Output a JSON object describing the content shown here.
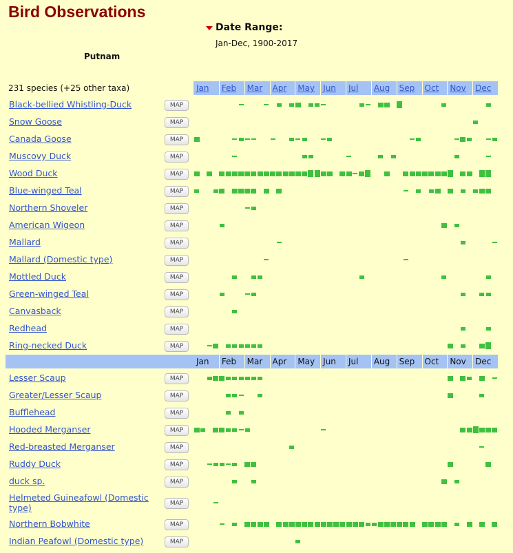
{
  "header": {
    "title": "Bird Observations",
    "date_range_label": "Date Range:",
    "date_range": "Jan-Dec, 1900-2017",
    "location": "Putnam",
    "species_count": "231 species (+25 other taxa)",
    "map_button": "MAP"
  },
  "months": [
    "Jan",
    "Feb",
    "Mar",
    "Apr",
    "May",
    "Jun",
    "Jul",
    "Aug",
    "Sep",
    "Oct",
    "Nov",
    "Dec"
  ],
  "species": [
    {
      "name": "Black-bellied Whistling-Duck",
      "weeks": [
        0,
        0,
        0,
        0,
        0,
        0,
        0,
        1,
        0,
        0,
        0,
        1,
        0,
        2,
        0,
        2,
        3,
        0,
        2,
        2,
        1,
        0,
        0,
        0,
        0,
        0,
        2,
        1,
        0,
        3,
        3,
        0,
        4,
        0,
        0,
        0,
        0,
        0,
        0,
        2,
        0,
        0,
        0,
        0,
        0,
        0,
        2,
        0
      ]
    },
    {
      "name": "Snow Goose",
      "weeks": [
        0,
        0,
        0,
        0,
        0,
        0,
        0,
        0,
        0,
        0,
        0,
        0,
        0,
        0,
        0,
        0,
        0,
        0,
        0,
        0,
        0,
        0,
        0,
        0,
        0,
        0,
        0,
        0,
        0,
        0,
        0,
        0,
        0,
        0,
        0,
        0,
        0,
        0,
        0,
        0,
        0,
        0,
        0,
        0,
        2,
        0,
        0,
        0
      ]
    },
    {
      "name": "Canada Goose",
      "weeks": [
        3,
        0,
        0,
        0,
        0,
        0,
        1,
        2,
        1,
        1,
        0,
        0,
        1,
        0,
        0,
        2,
        1,
        2,
        0,
        0,
        1,
        2,
        0,
        0,
        0,
        0,
        0,
        0,
        0,
        0,
        0,
        0,
        0,
        0,
        1,
        2,
        0,
        0,
        0,
        0,
        0,
        1,
        3,
        2,
        0,
        0,
        1,
        2
      ]
    },
    {
      "name": "Muscovy Duck",
      "weeks": [
        0,
        0,
        0,
        0,
        0,
        0,
        1,
        0,
        0,
        0,
        0,
        0,
        0,
        0,
        0,
        0,
        0,
        2,
        2,
        0,
        0,
        0,
        0,
        0,
        1,
        0,
        0,
        0,
        0,
        2,
        0,
        2,
        0,
        0,
        0,
        0,
        0,
        0,
        0,
        0,
        0,
        2,
        0,
        0,
        0,
        0,
        1,
        0
      ]
    },
    {
      "name": "Wood Duck",
      "weeks": [
        3,
        0,
        3,
        0,
        3,
        3,
        3,
        3,
        3,
        3,
        3,
        3,
        3,
        3,
        3,
        3,
        3,
        3,
        4,
        4,
        3,
        3,
        0,
        3,
        3,
        1,
        3,
        4,
        0,
        0,
        3,
        0,
        0,
        3,
        3,
        3,
        3,
        3,
        3,
        3,
        4,
        0,
        3,
        3,
        0,
        4,
        4,
        0
      ]
    },
    {
      "name": "Blue-winged Teal",
      "weeks": [
        2,
        0,
        0,
        2,
        3,
        0,
        3,
        3,
        3,
        3,
        0,
        3,
        0,
        3,
        0,
        0,
        0,
        0,
        0,
        0,
        0,
        0,
        0,
        0,
        0,
        0,
        0,
        0,
        0,
        0,
        0,
        0,
        0,
        1,
        0,
        2,
        0,
        2,
        3,
        0,
        3,
        0,
        2,
        0,
        2,
        3,
        3,
        0
      ]
    },
    {
      "name": "Northern Shoveler",
      "weeks": [
        0,
        0,
        0,
        0,
        0,
        0,
        0,
        0,
        1,
        2,
        0,
        0,
        0,
        0,
        0,
        0,
        0,
        0,
        0,
        0,
        0,
        0,
        0,
        0,
        0,
        0,
        0,
        0,
        0,
        0,
        0,
        0,
        0,
        0,
        0,
        0,
        0,
        0,
        0,
        0,
        0,
        0,
        0,
        0,
        0,
        0,
        0,
        0
      ]
    },
    {
      "name": "American Wigeon",
      "weeks": [
        0,
        0,
        0,
        0,
        2,
        0,
        0,
        0,
        0,
        0,
        0,
        0,
        0,
        0,
        0,
        0,
        0,
        0,
        0,
        0,
        0,
        0,
        0,
        0,
        0,
        0,
        0,
        0,
        0,
        0,
        0,
        0,
        0,
        0,
        0,
        0,
        0,
        0,
        0,
        3,
        0,
        2,
        0,
        0,
        0,
        0,
        0,
        0
      ]
    },
    {
      "name": "Mallard",
      "weeks": [
        0,
        0,
        0,
        0,
        0,
        0,
        0,
        0,
        0,
        0,
        0,
        0,
        0,
        1,
        0,
        0,
        0,
        0,
        0,
        0,
        0,
        0,
        0,
        0,
        0,
        0,
        0,
        0,
        0,
        0,
        0,
        0,
        0,
        0,
        0,
        0,
        0,
        0,
        0,
        0,
        0,
        0,
        2,
        0,
        0,
        0,
        0,
        1
      ]
    },
    {
      "name": "Mallard (Domestic type)",
      "weeks": [
        0,
        0,
        0,
        0,
        0,
        0,
        0,
        0,
        0,
        0,
        0,
        1,
        0,
        0,
        0,
        0,
        0,
        0,
        0,
        0,
        0,
        0,
        0,
        0,
        0,
        0,
        0,
        0,
        0,
        0,
        0,
        0,
        0,
        1,
        0,
        0,
        0,
        0,
        0,
        0,
        0,
        0,
        0,
        0,
        0,
        0,
        0,
        0
      ]
    },
    {
      "name": "Mottled Duck",
      "weeks": [
        0,
        0,
        0,
        0,
        0,
        0,
        2,
        0,
        0,
        2,
        2,
        0,
        0,
        0,
        0,
        0,
        0,
        0,
        0,
        0,
        0,
        0,
        0,
        0,
        0,
        0,
        2,
        0,
        0,
        0,
        0,
        0,
        0,
        0,
        0,
        0,
        0,
        0,
        0,
        2,
        0,
        0,
        0,
        0,
        0,
        0,
        2,
        0
      ]
    },
    {
      "name": "Green-winged Teal",
      "weeks": [
        0,
        0,
        0,
        0,
        2,
        0,
        0,
        0,
        1,
        2,
        0,
        0,
        0,
        0,
        0,
        0,
        0,
        0,
        0,
        0,
        0,
        0,
        0,
        0,
        0,
        0,
        0,
        0,
        0,
        0,
        0,
        0,
        0,
        0,
        0,
        0,
        0,
        0,
        0,
        0,
        0,
        0,
        2,
        0,
        0,
        2,
        2,
        0
      ]
    },
    {
      "name": "Canvasback",
      "weeks": [
        0,
        0,
        0,
        0,
        0,
        0,
        2,
        0,
        0,
        0,
        0,
        0,
        0,
        0,
        0,
        0,
        0,
        0,
        0,
        0,
        0,
        0,
        0,
        0,
        0,
        0,
        0,
        0,
        0,
        0,
        0,
        0,
        0,
        0,
        0,
        0,
        0,
        0,
        0,
        0,
        0,
        0,
        0,
        0,
        0,
        0,
        0,
        0
      ]
    },
    {
      "name": "Redhead",
      "weeks": [
        0,
        0,
        0,
        0,
        0,
        0,
        0,
        0,
        0,
        0,
        0,
        0,
        0,
        0,
        0,
        0,
        0,
        0,
        0,
        0,
        0,
        0,
        0,
        0,
        0,
        0,
        0,
        0,
        0,
        0,
        0,
        0,
        0,
        0,
        0,
        0,
        0,
        0,
        0,
        0,
        0,
        0,
        2,
        0,
        0,
        0,
        2,
        0
      ]
    },
    {
      "name": "Ring-necked Duck",
      "weeks": [
        0,
        0,
        1,
        3,
        0,
        2,
        2,
        2,
        2,
        2,
        2,
        0,
        0,
        0,
        0,
        0,
        0,
        0,
        0,
        0,
        0,
        0,
        0,
        0,
        0,
        0,
        0,
        0,
        0,
        0,
        0,
        0,
        0,
        0,
        0,
        0,
        0,
        0,
        0,
        0,
        3,
        0,
        2,
        0,
        0,
        3,
        4,
        0
      ]
    },
    {
      "name": "Lesser Scaup",
      "weeks": [
        0,
        0,
        2,
        3,
        3,
        2,
        2,
        2,
        2,
        2,
        2,
        0,
        0,
        0,
        0,
        0,
        0,
        0,
        0,
        0,
        0,
        0,
        0,
        0,
        0,
        0,
        0,
        0,
        0,
        0,
        0,
        0,
        0,
        0,
        0,
        0,
        0,
        0,
        0,
        0,
        3,
        0,
        3,
        2,
        0,
        3,
        0,
        1
      ]
    },
    {
      "name": "Greater/Lesser Scaup",
      "weeks": [
        0,
        0,
        0,
        0,
        0,
        2,
        2,
        1,
        0,
        0,
        2,
        0,
        0,
        0,
        0,
        0,
        0,
        0,
        0,
        0,
        0,
        0,
        0,
        0,
        0,
        0,
        0,
        0,
        0,
        0,
        0,
        0,
        0,
        0,
        0,
        0,
        0,
        0,
        0,
        0,
        3,
        0,
        0,
        0,
        0,
        2,
        0,
        0
      ]
    },
    {
      "name": "Bufflehead",
      "weeks": [
        0,
        0,
        0,
        0,
        0,
        2,
        0,
        2,
        0,
        0,
        0,
        0,
        0,
        0,
        0,
        0,
        0,
        0,
        0,
        0,
        0,
        0,
        0,
        0,
        0,
        0,
        0,
        0,
        0,
        0,
        0,
        0,
        0,
        0,
        0,
        0,
        0,
        0,
        0,
        0,
        0,
        0,
        0,
        0,
        0,
        0,
        0,
        0
      ]
    },
    {
      "name": "Hooded Merganser",
      "weeks": [
        3,
        2,
        0,
        3,
        3,
        2,
        2,
        1,
        2,
        0,
        0,
        0,
        0,
        0,
        0,
        0,
        0,
        0,
        0,
        0,
        1,
        0,
        0,
        0,
        0,
        0,
        0,
        0,
        0,
        0,
        0,
        0,
        0,
        0,
        0,
        0,
        0,
        0,
        0,
        0,
        0,
        0,
        3,
        3,
        4,
        3,
        3,
        3
      ]
    },
    {
      "name": "Red-breasted Merganser",
      "weeks": [
        0,
        0,
        0,
        0,
        0,
        0,
        0,
        0,
        0,
        0,
        0,
        0,
        0,
        0,
        0,
        2,
        0,
        0,
        0,
        0,
        0,
        0,
        0,
        0,
        0,
        0,
        0,
        0,
        0,
        0,
        0,
        0,
        0,
        0,
        0,
        0,
        0,
        0,
        0,
        0,
        0,
        0,
        0,
        0,
        0,
        1,
        0,
        0
      ]
    },
    {
      "name": "Ruddy Duck",
      "weeks": [
        0,
        0,
        1,
        2,
        2,
        1,
        2,
        0,
        3,
        3,
        0,
        0,
        0,
        0,
        0,
        0,
        0,
        0,
        0,
        0,
        0,
        0,
        0,
        0,
        0,
        0,
        0,
        0,
        0,
        0,
        0,
        0,
        0,
        0,
        0,
        0,
        0,
        0,
        0,
        0,
        3,
        0,
        0,
        0,
        0,
        0,
        3,
        0
      ]
    },
    {
      "name": "duck sp.",
      "weeks": [
        0,
        0,
        0,
        0,
        0,
        0,
        2,
        0,
        0,
        2,
        0,
        0,
        0,
        0,
        0,
        0,
        0,
        0,
        0,
        0,
        0,
        0,
        0,
        0,
        0,
        0,
        0,
        0,
        0,
        0,
        0,
        0,
        0,
        0,
        0,
        0,
        0,
        0,
        0,
        3,
        0,
        2,
        0,
        0,
        0,
        0,
        0,
        0
      ]
    },
    {
      "name": "Helmeted Guineafowl (Domestic type)",
      "weeks": [
        0,
        0,
        0,
        1,
        0,
        0,
        0,
        0,
        0,
        0,
        0,
        0,
        0,
        0,
        0,
        0,
        0,
        0,
        0,
        0,
        0,
        0,
        0,
        0,
        0,
        0,
        0,
        0,
        0,
        0,
        0,
        0,
        0,
        0,
        0,
        0,
        0,
        0,
        0,
        0,
        0,
        0,
        0,
        0,
        0,
        0,
        0,
        0
      ]
    },
    {
      "name": "Northern Bobwhite",
      "weeks": [
        0,
        0,
        0,
        0,
        1,
        0,
        2,
        0,
        3,
        3,
        3,
        3,
        0,
        3,
        3,
        3,
        3,
        3,
        3,
        3,
        3,
        3,
        3,
        3,
        3,
        3,
        3,
        2,
        2,
        3,
        3,
        3,
        3,
        3,
        3,
        0,
        3,
        3,
        3,
        3,
        0,
        2,
        0,
        3,
        0,
        3,
        0,
        3
      ]
    },
    {
      "name": "Indian Peafowl (Domestic type)",
      "weeks": [
        0,
        0,
        0,
        0,
        0,
        0,
        0,
        0,
        0,
        0,
        0,
        0,
        0,
        0,
        0,
        0,
        2,
        0,
        0,
        0,
        0,
        0,
        0,
        0,
        0,
        0,
        0,
        0,
        0,
        0,
        0,
        0,
        0,
        0,
        0,
        0,
        0,
        0,
        0,
        0,
        0,
        0,
        0,
        0,
        0,
        0,
        0,
        0
      ]
    }
  ]
}
